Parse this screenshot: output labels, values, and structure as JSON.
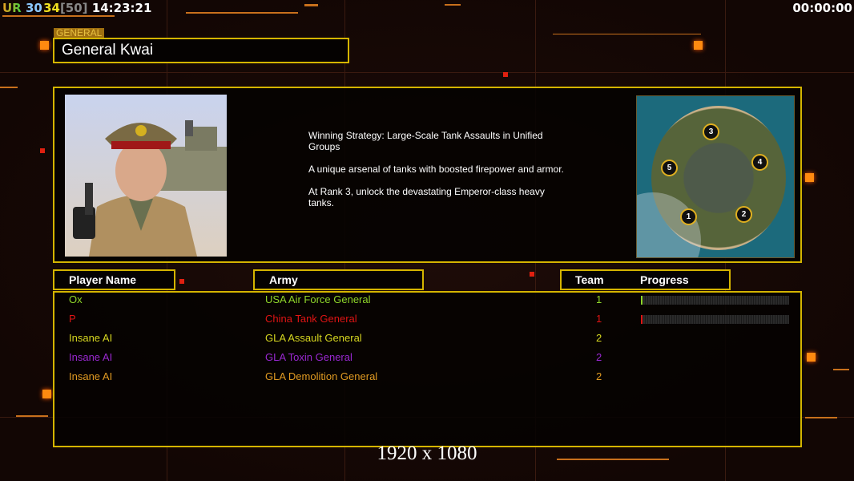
{
  "hud": {
    "ur_label": "UR",
    "value1": "30",
    "value2": "34",
    "bracket_value": "[50]",
    "clock": "14:23:21",
    "timer": "00:00:00"
  },
  "general": {
    "tag": "GENERAL",
    "name": "General Kwai"
  },
  "description": [
    "Winning Strategy: Large-Scale Tank Assaults in Unified Groups",
    "A unique arsenal of tanks with boosted firepower and armor.",
    "At Rank 3, unlock the devastating Emperor-class heavy tanks."
  ],
  "map": {
    "start_positions": [
      "1",
      "2",
      "3",
      "4",
      "5"
    ]
  },
  "table": {
    "headers": {
      "player": "Player Name",
      "army": "Army",
      "team": "Team",
      "progress": "Progress"
    },
    "rows": [
      {
        "player": "Ox",
        "army": "USA Air Force General",
        "team": "1",
        "color": "#8fd62a",
        "progress": 1
      },
      {
        "player": "P",
        "army": "China Tank General",
        "team": "1",
        "color": "#e01414",
        "progress": 1
      },
      {
        "player": "Insane AI",
        "army": "GLA Assault General",
        "team": "2",
        "color": "#d6d620"
      },
      {
        "player": "Insane AI",
        "army": "GLA Toxin General",
        "team": "2",
        "color": "#9a28d0"
      },
      {
        "player": "Insane AI",
        "army": "GLA Demolition General",
        "team": "2",
        "color": "#e09a22"
      }
    ]
  },
  "resolution": "1920 x 1080",
  "colors": {
    "frame": "#d4b400",
    "accent": "#ff8a10"
  }
}
